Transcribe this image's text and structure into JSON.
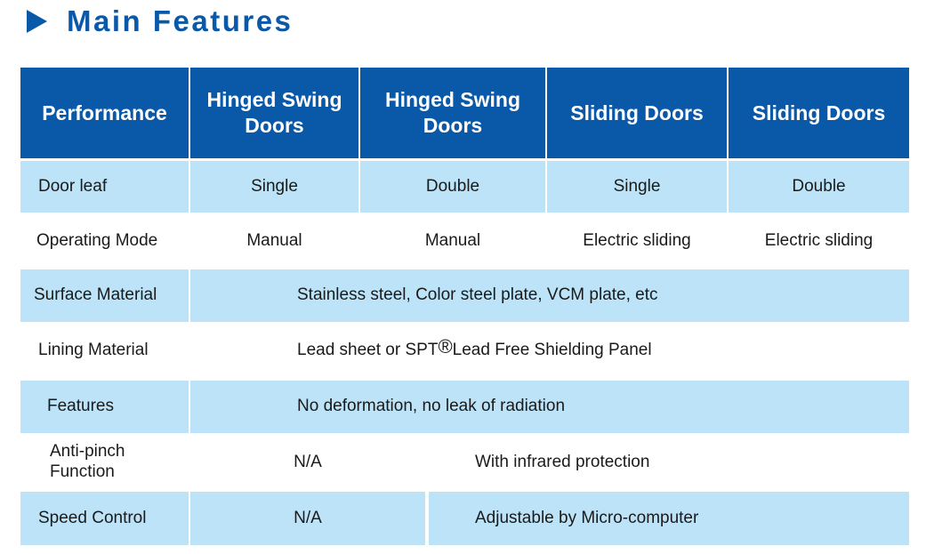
{
  "title": "Main Features",
  "colors": {
    "header": "#0a58a8",
    "row_light": "#bce3f8"
  },
  "headers": [
    "Performance",
    "Hinged Swing Doors",
    "Hinged Swing Doors",
    "Sliding Doors",
    "Sliding Doors"
  ],
  "rows": {
    "door_leaf": {
      "label": "Door leaf",
      "values": [
        "Single",
        "Double",
        "Single",
        "Double"
      ]
    },
    "operating_mode": {
      "label": "Operating Mode",
      "values": [
        "Manual",
        "Manual",
        "Electric sliding",
        "Electric sliding"
      ]
    },
    "surface_material": {
      "label": "Surface Material",
      "value": "Stainless steel, Color steel plate, VCM plate, etc"
    },
    "lining_material": {
      "label": "Lining Material",
      "value_pre": "Lead sheet or SPT",
      "mark": "®",
      "value_post": "Lead Free Shielding Panel"
    },
    "features": {
      "label": "Features",
      "value": "No deformation, no leak of radiation"
    },
    "anti_pinch": {
      "label": "Anti-pinch Function",
      "hinged": "N/A",
      "sliding": "With infrared protection"
    },
    "speed_control": {
      "label": "Speed Control",
      "hinged": "N/A",
      "sliding": "Adjustable by Micro-computer"
    }
  }
}
